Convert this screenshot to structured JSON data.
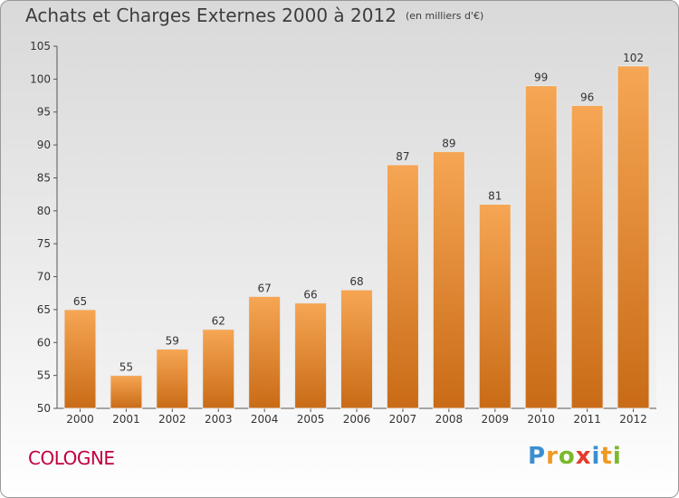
{
  "header": {
    "title": "Achats et Charges Externes 2000 à 2012",
    "unit": "(en milliers d'€)"
  },
  "footer": {
    "city": "COLOGNE",
    "brand": "Proxiti",
    "brand_letters": [
      {
        "char": "P",
        "color": "#3a8fd0"
      },
      {
        "char": "r",
        "color": "#f09a20"
      },
      {
        "char": "o",
        "color": "#7ab929"
      },
      {
        "char": "x",
        "color": "#e63a2a"
      },
      {
        "char": "i",
        "color": "#3a8fd0"
      },
      {
        "char": "t",
        "color": "#f09a20"
      },
      {
        "char": "i",
        "color": "#7ab929"
      }
    ]
  },
  "chart_data": {
    "type": "bar",
    "categories": [
      "2000",
      "2001",
      "2002",
      "2003",
      "2004",
      "2005",
      "2006",
      "2007",
      "2008",
      "2009",
      "2010",
      "2011",
      "2012"
    ],
    "values": [
      65,
      55,
      59,
      62,
      67,
      66,
      68,
      87,
      89,
      81,
      99,
      96,
      102
    ],
    "ylim": [
      50,
      105
    ],
    "yticks": [
      50,
      55,
      60,
      65,
      70,
      75,
      80,
      85,
      90,
      95,
      100,
      105
    ],
    "grid": false,
    "bar_color_top": "#f6a654",
    "bar_color_bottom": "#c96b16"
  }
}
